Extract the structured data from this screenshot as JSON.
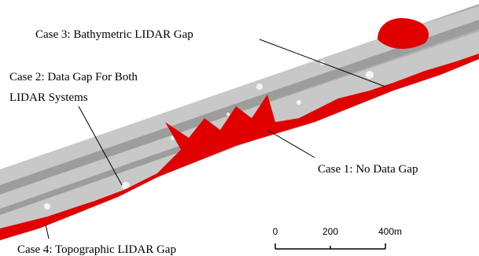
{
  "labels": {
    "case3": "Case 3: Bathymetric LIDAR Gap",
    "case2": [
      "Case 2: Data Gap For Both",
      "LIDAR Systems"
    ],
    "case1": "Case 1: No Data Gap",
    "case4": "Case 4: Topographic LIDAR Gap"
  },
  "scale_bar": {
    "labels": [
      "0",
      "200",
      "400m"
    ]
  }
}
